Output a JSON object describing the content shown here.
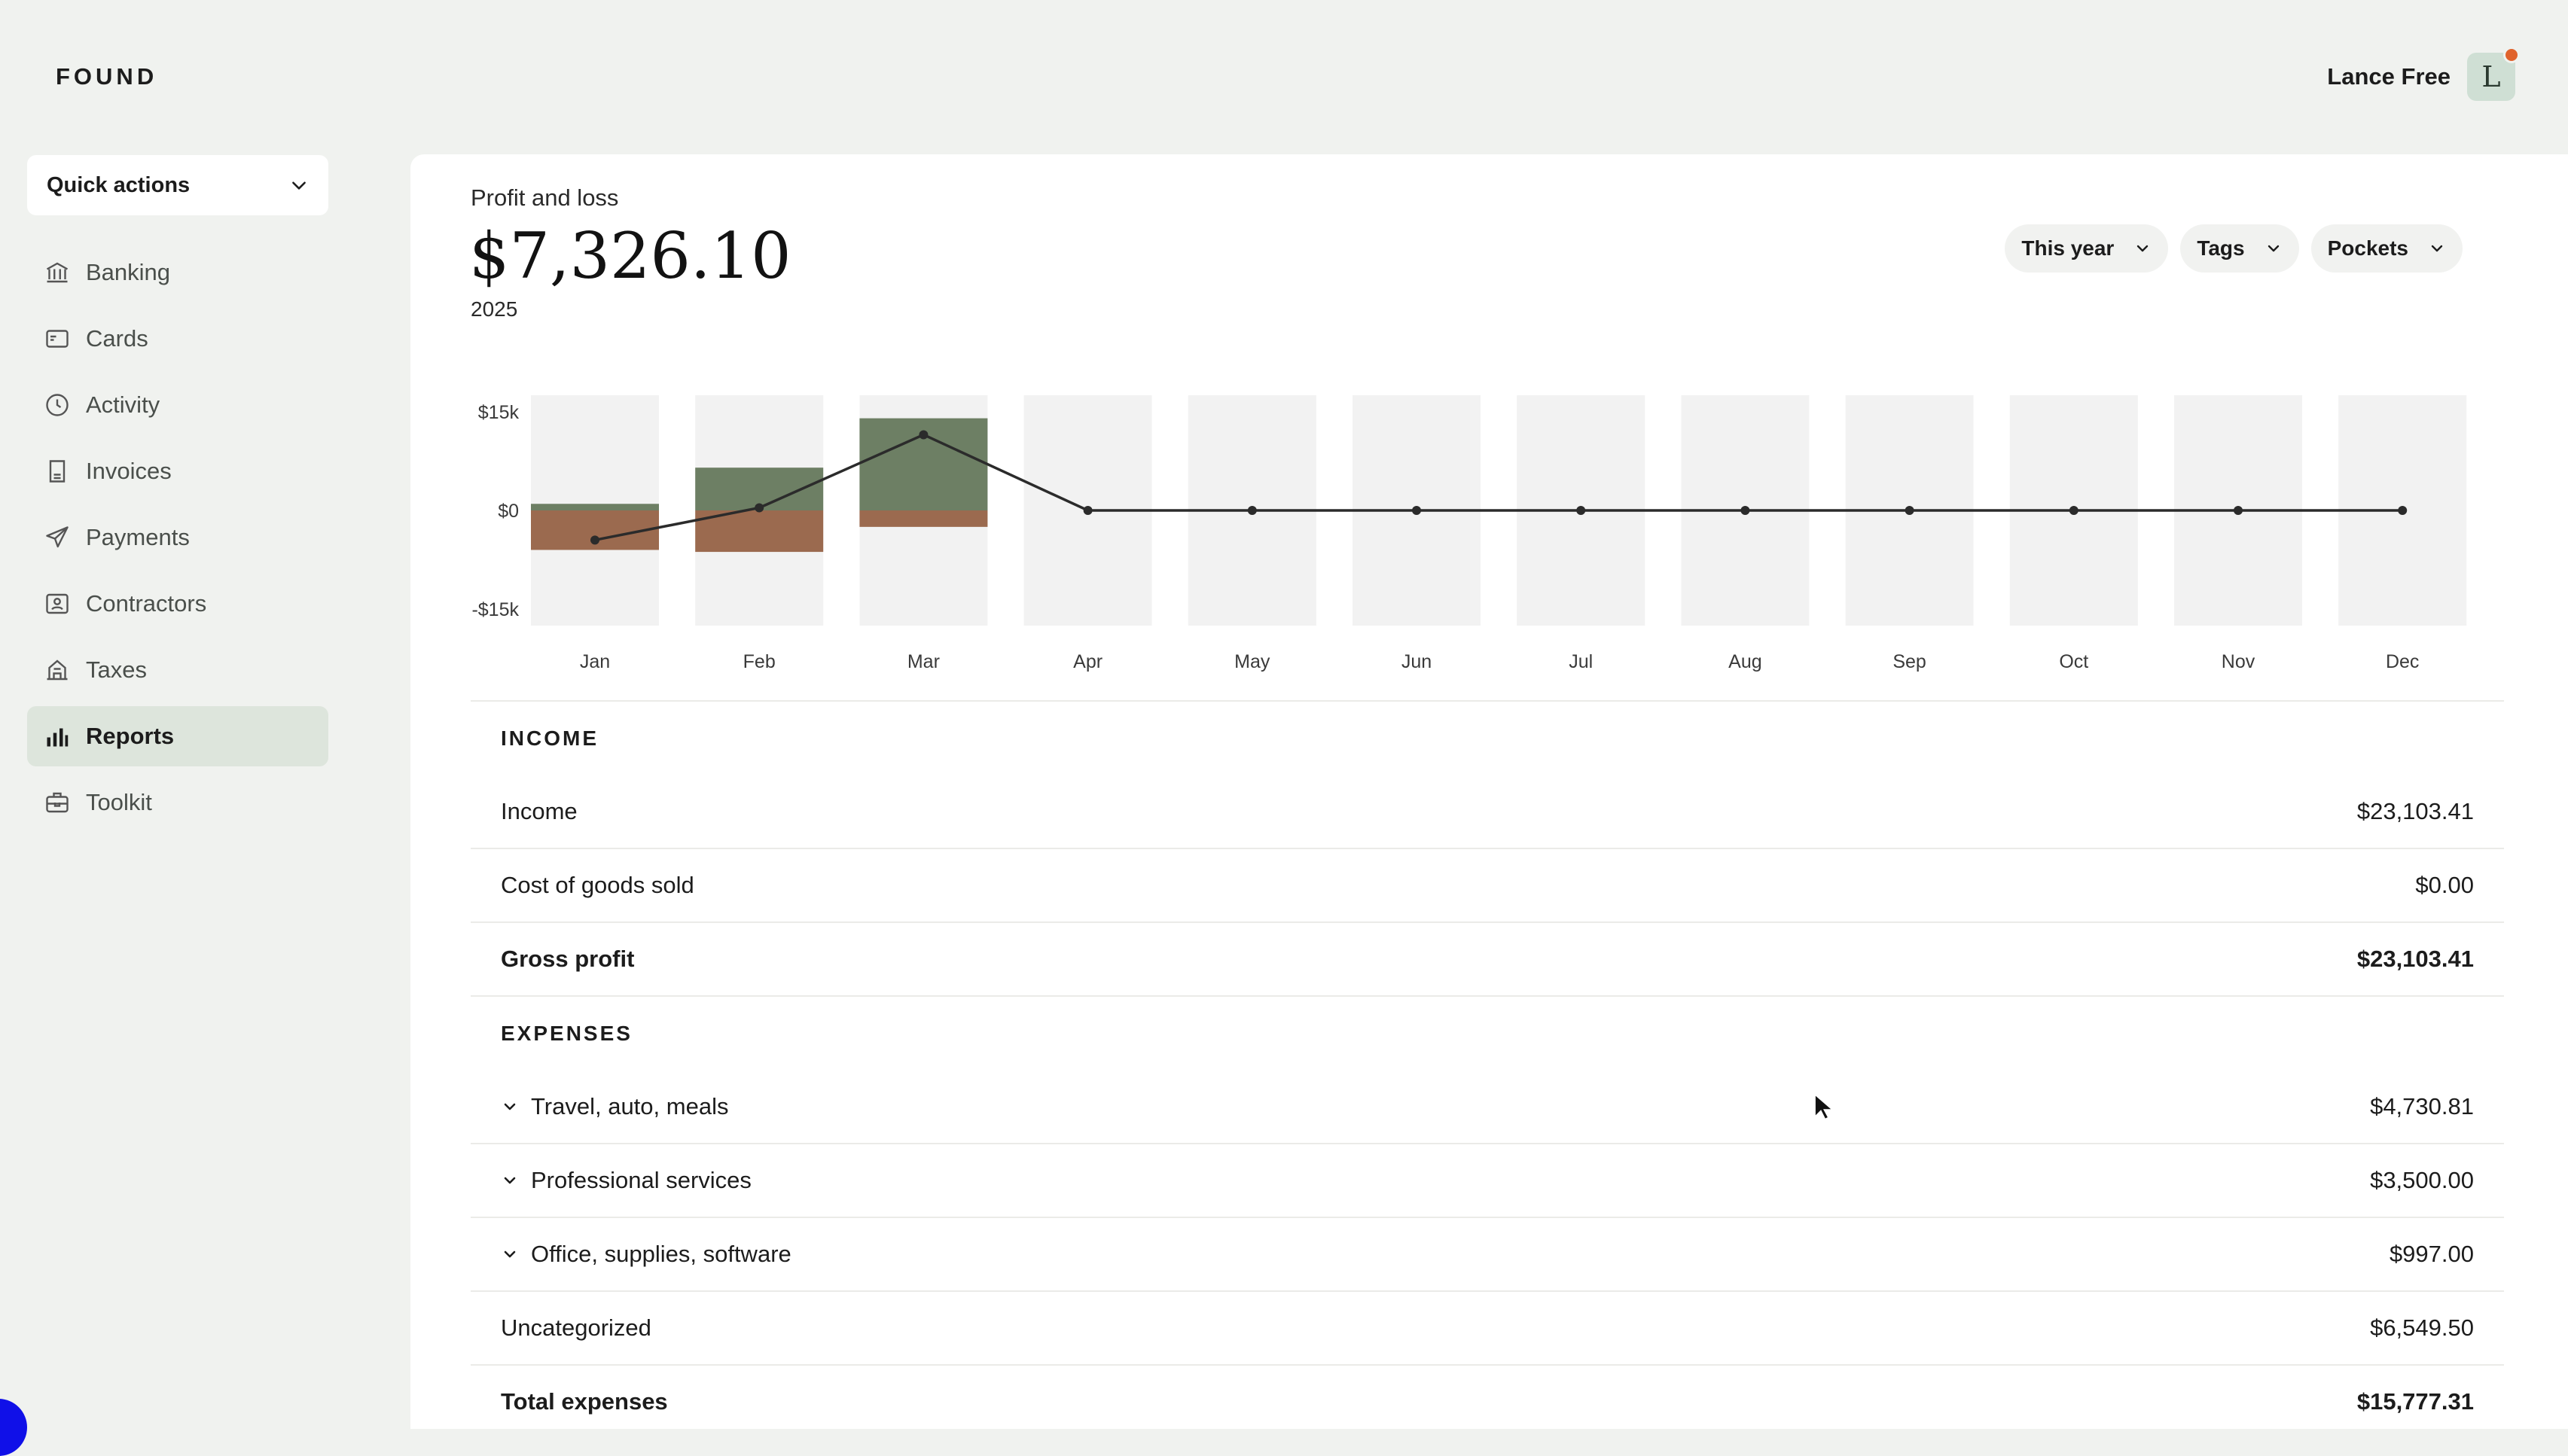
{
  "app": {
    "logo": "FOUND"
  },
  "user": {
    "name": "Lance Free",
    "initial": "L"
  },
  "sidebar": {
    "quick_actions": "Quick actions",
    "items": [
      {
        "label": "Banking",
        "icon": "bank-icon"
      },
      {
        "label": "Cards",
        "icon": "card-icon"
      },
      {
        "label": "Activity",
        "icon": "clock-icon"
      },
      {
        "label": "Invoices",
        "icon": "invoice-icon"
      },
      {
        "label": "Payments",
        "icon": "send-icon"
      },
      {
        "label": "Contractors",
        "icon": "contractor-icon"
      },
      {
        "label": "Taxes",
        "icon": "building-icon"
      },
      {
        "label": "Reports",
        "icon": "bar-chart-icon",
        "active": true
      },
      {
        "label": "Toolkit",
        "icon": "toolbox-icon"
      }
    ]
  },
  "report": {
    "title": "Profit and loss",
    "amount": "$7,326.10",
    "year": "2025",
    "filters": [
      "This year",
      "Tags",
      "Pockets"
    ]
  },
  "chart_data": {
    "type": "bar",
    "categories": [
      "Jan",
      "Feb",
      "Mar",
      "Apr",
      "May",
      "Jun",
      "Jul",
      "Aug",
      "Sep",
      "Oct",
      "Nov",
      "Dec"
    ],
    "series": [
      {
        "values": [
          1000,
          6500,
          14000,
          0,
          0,
          0,
          0,
          0,
          0,
          0,
          0,
          0
        ],
        "color": "#6d7f64"
      },
      {
        "values": [
          -6000,
          -6300,
          -2500,
          0,
          0,
          0,
          0,
          0,
          0,
          0,
          0,
          0
        ],
        "color": "#9b6a4f"
      }
    ],
    "line": {
      "values": [
        -4500,
        400,
        11500,
        0,
        0,
        0,
        0,
        0,
        0,
        0,
        0,
        0
      ],
      "color": "#2b2b2b"
    },
    "ylim": [
      -17500,
      17500
    ],
    "yticks": [
      {
        "value": 15000,
        "label": "$15k"
      },
      {
        "value": 0,
        "label": "$0"
      },
      {
        "value": -15000,
        "label": "-$15k"
      }
    ],
    "background_color": "#f2f2f2"
  },
  "income": {
    "heading": "INCOME",
    "rows": [
      {
        "label": "Income",
        "value": "$23,103.41"
      },
      {
        "label": "Cost of goods sold",
        "value": "$0.00"
      },
      {
        "label": "Gross profit",
        "value": "$23,103.41",
        "bold": true
      }
    ]
  },
  "expenses": {
    "heading": "EXPENSES",
    "rows": [
      {
        "label": "Travel, auto, meals",
        "value": "$4,730.81",
        "expandable": true
      },
      {
        "label": "Professional services",
        "value": "$3,500.00",
        "expandable": true
      },
      {
        "label": "Office, supplies, software",
        "value": "$997.00",
        "expandable": true
      },
      {
        "label": "Uncategorized",
        "value": "$6,549.50"
      },
      {
        "label": "Total expenses",
        "value": "$15,777.31",
        "bold": true
      }
    ]
  }
}
